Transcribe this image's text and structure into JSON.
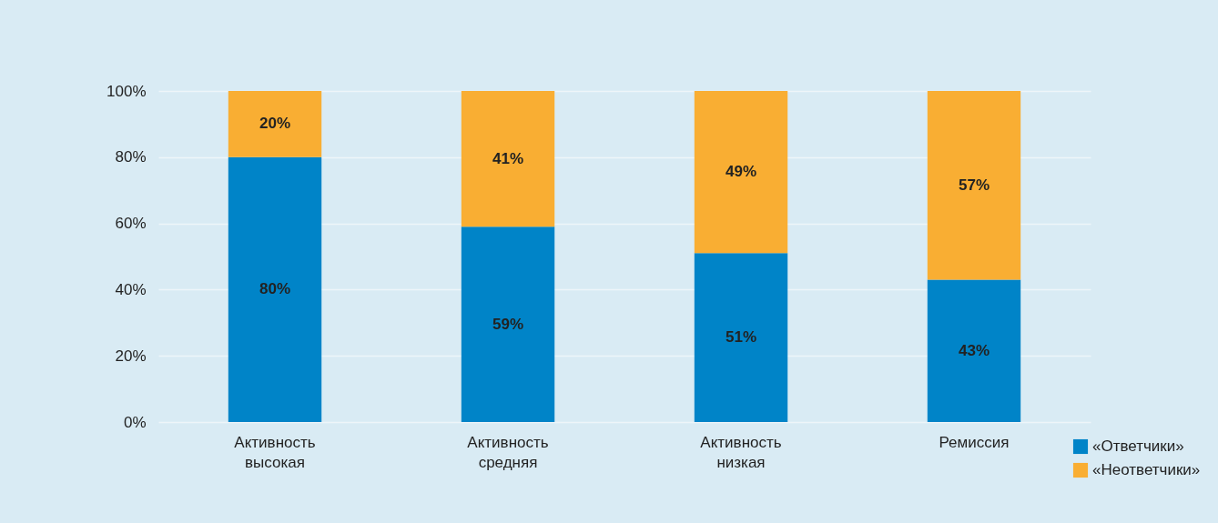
{
  "chart_data": {
    "type": "bar",
    "stacked": true,
    "categories": [
      "Активность высокая",
      "Активность средняя",
      "Активность низкая",
      "Ремиссия"
    ],
    "series": [
      {
        "name": "«Ответчики»",
        "color": "#0084c8",
        "values": [
          80,
          59,
          51,
          43
        ],
        "value_labels": [
          "80%",
          "59%",
          "51%",
          "43%"
        ]
      },
      {
        "name": "«Неответчики»",
        "color": "#f9ae33",
        "values": [
          20,
          41,
          49,
          57
        ],
        "value_labels": [
          "20%",
          "41%",
          "49%",
          "57%"
        ]
      }
    ],
    "ylim": [
      0,
      100
    ],
    "yticks": [
      {
        "value": 0,
        "label": "0%"
      },
      {
        "value": 20,
        "label": "20%"
      },
      {
        "value": 40,
        "label": "40%"
      },
      {
        "value": 60,
        "label": "60%"
      },
      {
        "value": 80,
        "label": "80%"
      },
      {
        "value": 100,
        "label": "100%"
      }
    ],
    "grid": "y",
    "legend": "bottom right"
  }
}
